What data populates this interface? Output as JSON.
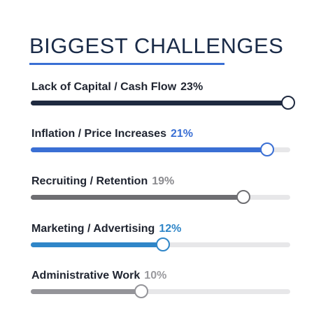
{
  "title": "BIGGEST CHALLENGES",
  "colors": {
    "title": "#1a2b48",
    "underline": "#3a6fd4",
    "track": "#e7e7e9"
  },
  "chart_data": {
    "type": "bar",
    "orientation": "horizontal",
    "title": "BIGGEST CHALLENGES",
    "scale_max_percent": 23,
    "categories": [
      "Lack of Capital / Cash Flow",
      "Inflation / Price Increases",
      "Recruiting / Retention",
      "Marketing / Advertising",
      "Administrative Work"
    ],
    "values": [
      23,
      21,
      19,
      12,
      10
    ],
    "value_labels": [
      "23%",
      "21%",
      "19%",
      "12%",
      "10%"
    ],
    "bar_colors": [
      "#1f2a40",
      "#3a6fd4",
      "#6e6e72",
      "#2f86c8",
      "#949499"
    ],
    "label_colors": [
      "#1f2430",
      "#3a6fd4",
      "#8a8a8e",
      "#2f86c8",
      "#9a9a9e"
    ],
    "fill_fractions": [
      0.992,
      0.91,
      0.82,
      0.51,
      0.425
    ]
  }
}
